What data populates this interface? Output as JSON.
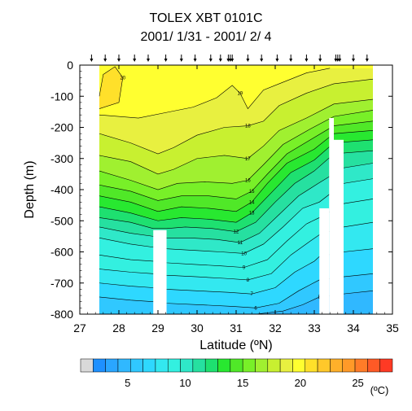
{
  "chart_data": {
    "type": "heatmap",
    "title": "TOLEX XBT 0101C",
    "subtitle": "2001/ 1/31 - 2001/ 2/ 4",
    "xlabel": "Latitude (ºN)",
    "ylabel": "Depth (m)",
    "xlim": [
      27,
      35
    ],
    "ylim": [
      -800,
      0
    ],
    "x_ticks": [
      27,
      28,
      29,
      30,
      31,
      32,
      33,
      34,
      35
    ],
    "x_tick_labels": [
      "27",
      "28",
      "29",
      "30",
      "31",
      "32",
      "33",
      "34",
      "35"
    ],
    "y_ticks": [
      0,
      -100,
      -200,
      -300,
      -400,
      -500,
      -600,
      -700,
      -800
    ],
    "y_tick_labels": [
      "0",
      "-100",
      "-200",
      "-300",
      "-400",
      "-500",
      "-600",
      "-700",
      "-800"
    ],
    "data_lon_range": [
      27.5,
      34.5
    ],
    "station_latitudes": [
      27.3,
      27.65,
      28.0,
      28.4,
      28.75,
      29.2,
      29.6,
      29.95,
      30.35,
      30.6,
      30.8,
      30.85,
      30.9,
      31.3,
      31.65,
      32.05,
      32.4,
      32.8,
      33.15,
      33.55,
      33.6,
      33.65,
      34.0,
      34.35
    ],
    "gaps": [
      {
        "lat": [
          28.88,
          29.22
        ],
        "depth": [
          -530,
          -800
        ]
      },
      {
        "lat": [
          33.13,
          33.38
        ],
        "depth": [
          -460,
          -800
        ]
      },
      {
        "lat": [
          33.38,
          33.5
        ],
        "depth": [
          -170,
          -800
        ]
      },
      {
        "lat": [
          33.5,
          33.75
        ],
        "depth": [
          -240,
          -800
        ]
      },
      {
        "lat": [
          34.5,
          34.88
        ],
        "depth": [
          0,
          -800
        ]
      }
    ],
    "contours": [
      {
        "level": 20,
        "label": "20",
        "points": [
          [
            27.5,
            -100
          ],
          [
            27.6,
            -30
          ],
          [
            27.9,
            -5
          ],
          [
            28.1,
            -40
          ],
          [
            28.0,
            -120
          ],
          [
            27.5,
            -140
          ]
        ]
      },
      {
        "level": 19,
        "label": "19",
        "points": [
          [
            27.5,
            -160
          ],
          [
            28.5,
            -170
          ],
          [
            29.3,
            -150
          ],
          [
            29.9,
            -135
          ],
          [
            30.5,
            -105
          ],
          [
            30.9,
            -65
          ],
          [
            31.1,
            -90
          ],
          [
            31.3,
            -140
          ],
          [
            31.7,
            -80
          ],
          [
            32.1,
            -60
          ],
          [
            32.8,
            -25
          ],
          [
            33.4,
            -10
          ]
        ]
      },
      {
        "level": 18,
        "label": "18",
        "points": [
          [
            27.5,
            -220
          ],
          [
            28.3,
            -250
          ],
          [
            29.0,
            -285
          ],
          [
            29.4,
            -265
          ],
          [
            30.0,
            -225
          ],
          [
            30.7,
            -200
          ],
          [
            31.3,
            -195
          ],
          [
            31.7,
            -180
          ],
          [
            32.1,
            -130
          ],
          [
            32.8,
            -90
          ],
          [
            33.5,
            -60
          ],
          [
            34.5,
            -45
          ]
        ]
      },
      {
        "level": 17,
        "label": "17",
        "points": [
          [
            27.5,
            -290
          ],
          [
            28.3,
            -310
          ],
          [
            29.0,
            -350
          ],
          [
            29.4,
            -335
          ],
          [
            30.0,
            -300
          ],
          [
            30.7,
            -290
          ],
          [
            31.3,
            -300
          ],
          [
            31.7,
            -260
          ],
          [
            32.1,
            -210
          ],
          [
            32.8,
            -170
          ],
          [
            33.5,
            -125
          ],
          [
            34.5,
            -110
          ]
        ]
      },
      {
        "level": 16,
        "label": "16",
        "points": [
          [
            27.5,
            -340
          ],
          [
            28.3,
            -370
          ],
          [
            29.0,
            -400
          ],
          [
            29.5,
            -380
          ],
          [
            30.2,
            -375
          ],
          [
            30.9,
            -380
          ],
          [
            31.3,
            -370
          ],
          [
            31.7,
            -320
          ],
          [
            32.2,
            -255
          ],
          [
            32.9,
            -205
          ],
          [
            33.5,
            -165
          ],
          [
            34.5,
            -145
          ]
        ]
      },
      {
        "level": 15,
        "label": "15",
        "points": [
          [
            27.5,
            -385
          ],
          [
            28.3,
            -405
          ],
          [
            29.0,
            -435
          ],
          [
            29.6,
            -420
          ],
          [
            30.3,
            -420
          ],
          [
            31.0,
            -430
          ],
          [
            31.4,
            -405
          ],
          [
            31.8,
            -350
          ],
          [
            32.3,
            -285
          ],
          [
            32.9,
            -240
          ],
          [
            33.5,
            -195
          ],
          [
            34.5,
            -180
          ]
        ]
      },
      {
        "level": 14,
        "label": "14",
        "points": [
          [
            27.5,
            -420
          ],
          [
            28.3,
            -440
          ],
          [
            29.0,
            -470
          ],
          [
            29.6,
            -455
          ],
          [
            30.3,
            -460
          ],
          [
            31.0,
            -470
          ],
          [
            31.4,
            -440
          ],
          [
            31.8,
            -380
          ],
          [
            32.3,
            -315
          ],
          [
            33.0,
            -270
          ],
          [
            33.5,
            -220
          ],
          [
            34.5,
            -210
          ]
        ]
      },
      {
        "level": 13,
        "label": "13",
        "points": [
          [
            27.5,
            -455
          ],
          [
            28.3,
            -475
          ],
          [
            29.0,
            -500
          ],
          [
            29.6,
            -490
          ],
          [
            30.3,
            -495
          ],
          [
            31.0,
            -505
          ],
          [
            31.4,
            -475
          ],
          [
            31.9,
            -410
          ],
          [
            32.4,
            -345
          ],
          [
            33.0,
            -305
          ],
          [
            33.5,
            -250
          ],
          [
            34.5,
            -240
          ]
        ]
      },
      {
        "level": 12,
        "label": "12",
        "points": [
          [
            27.5,
            -490
          ],
          [
            28.3,
            -505
          ],
          [
            28.88,
            -525
          ],
          [
            29.22,
            -525
          ],
          [
            29.7,
            -520
          ],
          [
            30.4,
            -525
          ],
          [
            31.0,
            -535
          ],
          [
            31.5,
            -505
          ],
          [
            32.0,
            -440
          ],
          [
            32.5,
            -380
          ],
          [
            33.0,
            -340
          ],
          [
            33.5,
            -285
          ],
          [
            34.5,
            -275
          ]
        ]
      },
      {
        "level": 11,
        "label": "11",
        "points": [
          [
            27.5,
            -520
          ],
          [
            28.3,
            -540
          ],
          [
            28.88,
            -550
          ],
          [
            29.22,
            -555
          ],
          [
            29.8,
            -555
          ],
          [
            30.5,
            -560
          ],
          [
            31.1,
            -570
          ],
          [
            31.6,
            -540
          ],
          [
            32.1,
            -480
          ],
          [
            32.6,
            -420
          ],
          [
            33.1,
            -380
          ],
          [
            33.75,
            -330
          ],
          [
            34.5,
            -315
          ]
        ]
      },
      {
        "level": 10,
        "label": "10",
        "points": [
          [
            27.5,
            -555
          ],
          [
            28.3,
            -575
          ],
          [
            28.88,
            -585
          ],
          [
            29.22,
            -590
          ],
          [
            29.9,
            -595
          ],
          [
            30.6,
            -600
          ],
          [
            31.2,
            -605
          ],
          [
            31.7,
            -575
          ],
          [
            32.2,
            -520
          ],
          [
            32.7,
            -460
          ],
          [
            33.13,
            -440
          ],
          [
            33.75,
            -380
          ],
          [
            34.5,
            -365
          ]
        ]
      },
      {
        "level": 9,
        "label": "9",
        "points": [
          [
            27.5,
            -610
          ],
          [
            28.3,
            -625
          ],
          [
            28.88,
            -630
          ],
          [
            29.22,
            -635
          ],
          [
            29.9,
            -640
          ],
          [
            30.6,
            -645
          ],
          [
            31.2,
            -650
          ],
          [
            31.8,
            -625
          ],
          [
            32.3,
            -565
          ],
          [
            32.8,
            -510
          ],
          [
            33.13,
            -490
          ],
          [
            33.75,
            -445
          ],
          [
            34.5,
            -430
          ]
        ]
      },
      {
        "level": 8,
        "label": "8",
        "points": [
          [
            27.5,
            -655
          ],
          [
            28.3,
            -665
          ],
          [
            28.88,
            -670
          ],
          [
            29.22,
            -675
          ],
          [
            30.0,
            -680
          ],
          [
            30.7,
            -685
          ],
          [
            31.3,
            -690
          ],
          [
            31.9,
            -670
          ],
          [
            32.4,
            -610
          ],
          [
            32.9,
            -565
          ],
          [
            33.13,
            -545
          ],
          [
            33.75,
            -520
          ],
          [
            34.5,
            -505
          ]
        ]
      },
      {
        "level": 7,
        "label": "7",
        "points": [
          [
            27.5,
            -700
          ],
          [
            28.3,
            -710
          ],
          [
            28.88,
            -715
          ],
          [
            29.22,
            -720
          ],
          [
            30.0,
            -725
          ],
          [
            30.8,
            -730
          ],
          [
            31.4,
            -735
          ],
          [
            32.0,
            -715
          ],
          [
            32.5,
            -665
          ],
          [
            33.0,
            -630
          ],
          [
            33.13,
            -615
          ],
          [
            33.75,
            -600
          ],
          [
            34.5,
            -590
          ]
        ]
      },
      {
        "level": 6,
        "label": "6",
        "points": [
          [
            27.5,
            -745
          ],
          [
            28.3,
            -755
          ],
          [
            28.88,
            -760
          ],
          [
            29.22,
            -765
          ],
          [
            30.1,
            -770
          ],
          [
            30.9,
            -775
          ],
          [
            31.5,
            -780
          ],
          [
            32.1,
            -765
          ],
          [
            32.6,
            -725
          ],
          [
            33.13,
            -690
          ],
          [
            33.75,
            -680
          ],
          [
            34.5,
            -670
          ]
        ]
      },
      {
        "level": 5,
        "label": "5",
        "points": [
          [
            31.5,
            -800
          ],
          [
            32.2,
            -790
          ],
          [
            32.7,
            -770
          ],
          [
            33.13,
            -745
          ],
          [
            33.75,
            -735
          ],
          [
            34.5,
            -725
          ]
        ]
      }
    ],
    "colorbar": {
      "unit_label": "(ºC)",
      "min": 2,
      "max": 28,
      "tick_values": [
        5,
        10,
        15,
        20,
        25
      ],
      "tick_labels": [
        "5",
        "10",
        "15",
        "20",
        "25"
      ],
      "colors": [
        "#d9d9d9",
        "#1e90ff",
        "#2aa6ff",
        "#30b8ff",
        "#30c8ff",
        "#2ed8ff",
        "#33e8f0",
        "#33f0e0",
        "#2fe8c8",
        "#26e0a0",
        "#1ee070",
        "#28e830",
        "#50e828",
        "#78f028",
        "#a0f030",
        "#c8f030",
        "#e8f040",
        "#ffff30",
        "#ffe02a",
        "#ffc82a",
        "#ffb02a",
        "#ff9a28",
        "#ff7c28",
        "#ff5a26",
        "#ff3a24"
      ]
    }
  }
}
